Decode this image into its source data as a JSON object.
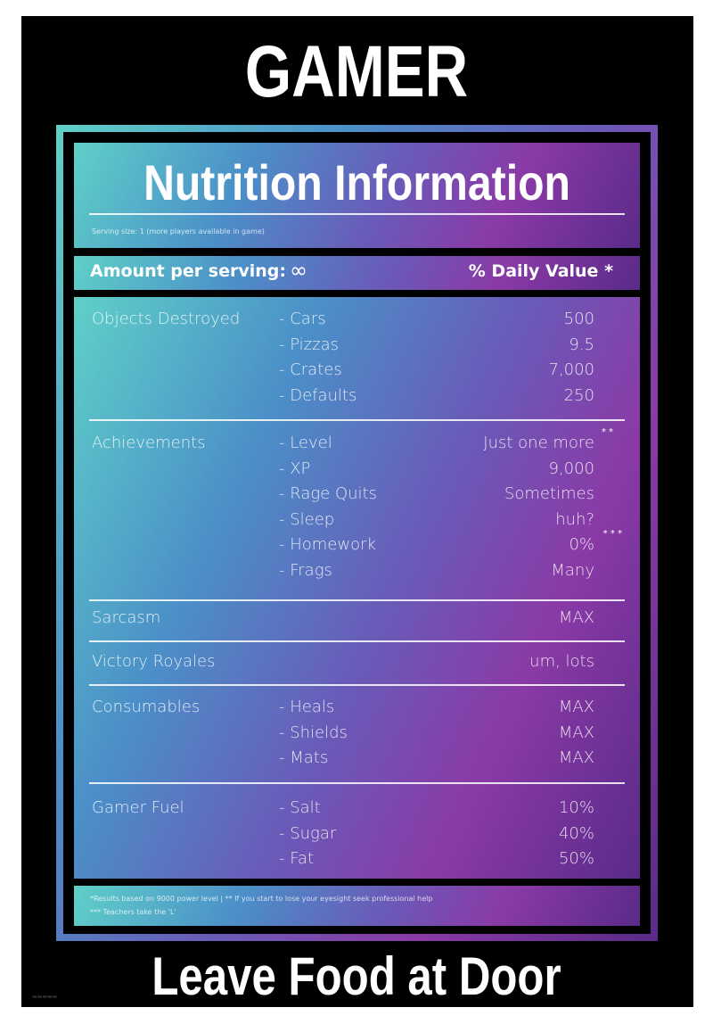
{
  "header": {
    "title": "GAMER"
  },
  "panel": {
    "title": "Nutrition Information",
    "serving": "Serving size: 1 (more players available in game)",
    "amount_label": "Amount per serving:",
    "amount_value": "∞",
    "daily_value": "% Daily Value *"
  },
  "sections": [
    {
      "label": "Objects Destroyed",
      "rows": [
        {
          "sub": "- Cars",
          "val": "500"
        },
        {
          "sub": "- Pizzas",
          "val": "9.5"
        },
        {
          "sub": "- Crates",
          "val": "7,000"
        },
        {
          "sub": "- Defaults",
          "val": "250"
        }
      ]
    },
    {
      "label": "Achievements",
      "rows": [
        {
          "sub": "- Level",
          "val": "Just one more"
        },
        {
          "sub": "- XP",
          "val": "9,000"
        },
        {
          "sub": "- Rage Quits",
          "val": "Sometimes"
        },
        {
          "sub": "- Sleep",
          "val": "huh?"
        },
        {
          "sub": "- Homework",
          "val": "0%"
        },
        {
          "sub": "- Frags",
          "val": "Many"
        }
      ]
    },
    {
      "label": "Sarcasm",
      "rows": [
        {
          "sub": "",
          "val": "MAX"
        }
      ]
    },
    {
      "label": "Victory Royales",
      "rows": [
        {
          "sub": "",
          "val": "um, lots"
        }
      ]
    },
    {
      "label": "Consumables",
      "rows": [
        {
          "sub": "- Heals",
          "val": "MAX"
        },
        {
          "sub": "- Shields",
          "val": "MAX"
        },
        {
          "sub": "- Mats",
          "val": "MAX"
        }
      ]
    },
    {
      "label": "Gamer Fuel",
      "rows": [
        {
          "sub": "- Salt",
          "val": "10%"
        },
        {
          "sub": "- Sugar",
          "val": "40%"
        },
        {
          "sub": "- Fat",
          "val": "50%"
        }
      ]
    }
  ],
  "marks": {
    "level": "* *",
    "homework": "* * *"
  },
  "footnotes": {
    "line1": "*Results based on 9000 power level   |   ** If you start to lose your eyesight seek professional help",
    "line2": "*** Teachers take the 'L'"
  },
  "footer": {
    "slogan": "Leave Food at Door"
  },
  "colors": {
    "teal": "#5fd0c8",
    "blue": "#4b8fc8",
    "purple": "#8a3aa6",
    "background": "#000000"
  }
}
